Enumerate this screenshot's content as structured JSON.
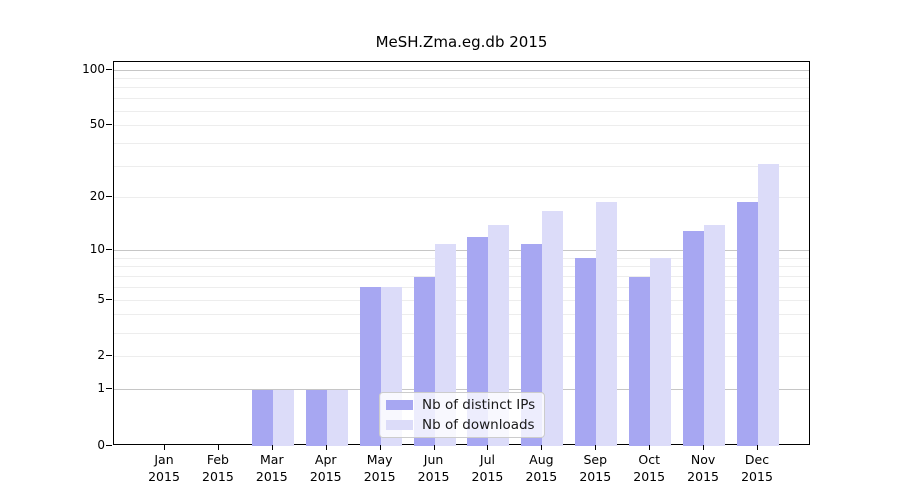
{
  "figure": {
    "title": "MeSH.Zma.eg.db 2015"
  },
  "colors": {
    "distinct_ips_bar": "#a7a7f2",
    "downloads_bar": "#dcdcf9",
    "major_gridline": "#c6c6c6",
    "minor_gridline": "#ededed",
    "axis": "#000000",
    "legend_border": "#cccccc",
    "legend_background": "rgba(255,255,255,0.8)"
  },
  "chart_data": {
    "type": "bar",
    "title": "MeSH.Zma.eg.db 2015",
    "categories": [
      "Jan 2015",
      "Feb 2015",
      "Mar 2015",
      "Apr 2015",
      "May 2015",
      "Jun 2015",
      "Jul 2015",
      "Aug 2015",
      "Sep 2015",
      "Oct 2015",
      "Nov 2015",
      "Dec 2015"
    ],
    "series": [
      {
        "name": "Nb of distinct IPs",
        "color": "#a7a7f2",
        "values": [
          0,
          0,
          1,
          1,
          6,
          7,
          12,
          11,
          9,
          7,
          13,
          19
        ]
      },
      {
        "name": "Nb of downloads",
        "color": "#dcdcf9",
        "values": [
          0,
          0,
          1,
          1,
          6,
          11,
          14,
          17,
          19,
          9,
          14,
          31
        ]
      }
    ],
    "xlabel": "",
    "ylabel": "",
    "yscale": "log1p",
    "ylim": [
      0,
      110
    ],
    "y_tick_values": [
      0,
      1,
      2,
      5,
      10,
      20,
      50,
      100
    ],
    "y_major_gridlines": [
      1,
      10,
      100
    ],
    "y_minor_gridlines": [
      2,
      3,
      4,
      5,
      6,
      7,
      8,
      9,
      20,
      30,
      40,
      50,
      60,
      70,
      80,
      90
    ],
    "grid": "horizontal",
    "legend_position": "bottom-center"
  }
}
